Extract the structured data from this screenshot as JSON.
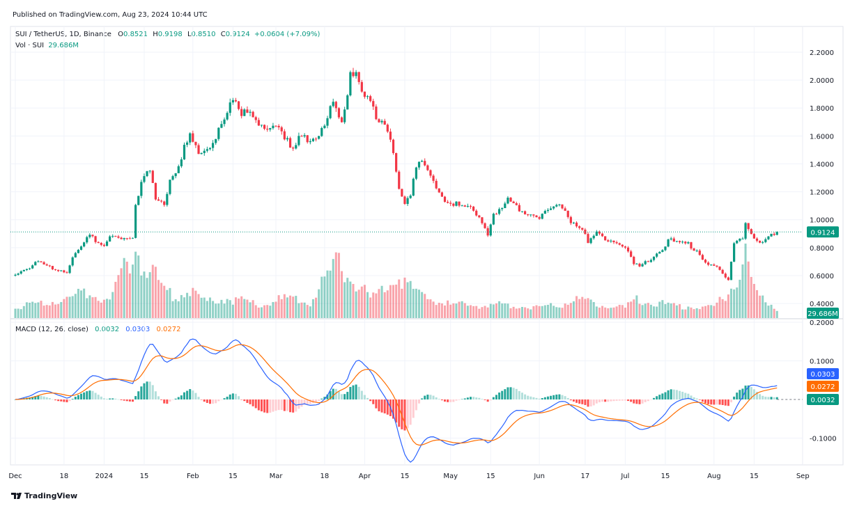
{
  "header": {
    "published": "Published on TradingView.com, Aug 23, 2024 10:44 UTC",
    "symbol": "SUI / TetherUS, 1D, Binance",
    "open_label": "O",
    "open": "0.8521",
    "high_label": "H",
    "high": "0.9198",
    "low_label": "L",
    "low": "0.8510",
    "close_label": "C",
    "close": "0.9124",
    "change": "+0.0604 (+7.09%)",
    "vol_label": "Vol · SUI",
    "vol_value": "29.686M"
  },
  "macd_legend": {
    "label": "MACD (12, 26, close)",
    "hist": "0.0032",
    "macd": "0.0303",
    "signal": "0.0272"
  },
  "branding": {
    "logo_text": "TradingView"
  },
  "colors": {
    "up": "#089981",
    "down": "#f23645",
    "macd": "#2962ff",
    "signal": "#ff6d00",
    "last_price": "#089981"
  },
  "chart_data": {
    "type": "candlestick",
    "price_axis": {
      "ticks": [
        "2.2000",
        "2.0000",
        "1.8000",
        "1.6000",
        "1.4000",
        "1.2000",
        "1.0000",
        "0.8000",
        "0.6000",
        "0.4000"
      ],
      "range": [
        0.2,
        2.4
      ]
    },
    "macd_axis": {
      "ticks": [
        "0.2000",
        "0.1000",
        "-0.1000"
      ]
    },
    "last_price_label": "0.9124",
    "last_volume_label": "29.686M",
    "macd_labels": {
      "macd": "0.0303",
      "signal": "0.0272",
      "hist": "0.0032"
    },
    "time_axis": [
      {
        "label": "Dec",
        "date": "2023-12-01"
      },
      {
        "label": "18",
        "date": "2023-12-18"
      },
      {
        "label": "2024",
        "date": "2024-01-01"
      },
      {
        "label": "15",
        "date": "2024-01-15"
      },
      {
        "label": "Feb",
        "date": "2024-02-01"
      },
      {
        "label": "15",
        "date": "2024-02-15"
      },
      {
        "label": "Mar",
        "date": "2024-03-01"
      },
      {
        "label": "18",
        "date": "2024-03-18"
      },
      {
        "label": "Apr",
        "date": "2024-04-01"
      },
      {
        "label": "15",
        "date": "2024-04-15"
      },
      {
        "label": "May",
        "date": "2024-05-01"
      },
      {
        "label": "15",
        "date": "2024-05-15"
      },
      {
        "label": "Jun",
        "date": "2024-06-01"
      },
      {
        "label": "17",
        "date": "2024-06-17"
      },
      {
        "label": "Jul",
        "date": "2024-07-01"
      },
      {
        "label": "15",
        "date": "2024-07-15"
      },
      {
        "label": "Aug",
        "date": "2024-08-01"
      },
      {
        "label": "15",
        "date": "2024-08-15"
      },
      {
        "label": "Sep",
        "date": "2024-09-01"
      }
    ],
    "close_path": [
      [
        "2023-12-01",
        0.615
      ],
      [
        "2023-12-09",
        0.69
      ],
      [
        "2023-12-13",
        0.66
      ],
      [
        "2023-12-19",
        0.63
      ],
      [
        "2023-12-21",
        0.73
      ],
      [
        "2023-12-27",
        0.88
      ],
      [
        "2024-01-01",
        0.82
      ],
      [
        "2024-01-03",
        0.9
      ],
      [
        "2024-01-07",
        0.85
      ],
      [
        "2024-01-11",
        0.85
      ],
      [
        "2024-01-12",
        1.1
      ],
      [
        "2024-01-14",
        1.29
      ],
      [
        "2024-01-17",
        1.38
      ],
      [
        "2024-01-19",
        1.16
      ],
      [
        "2024-01-22",
        1.08
      ],
      [
        "2024-01-24",
        1.28
      ],
      [
        "2024-01-27",
        1.35
      ],
      [
        "2024-01-29",
        1.55
      ],
      [
        "2024-01-31",
        1.62
      ],
      [
        "2024-02-04",
        1.45
      ],
      [
        "2024-02-08",
        1.52
      ],
      [
        "2024-02-12",
        1.75
      ],
      [
        "2024-02-15",
        1.9
      ],
      [
        "2024-02-17",
        1.8
      ],
      [
        "2024-02-21",
        1.73
      ],
      [
        "2024-02-25",
        1.65
      ],
      [
        "2024-02-27",
        1.68
      ],
      [
        "2024-03-02",
        1.69
      ],
      [
        "2024-03-04",
        1.58
      ],
      [
        "2024-03-07",
        1.48
      ],
      [
        "2024-03-09",
        1.58
      ],
      [
        "2024-03-13",
        1.58
      ],
      [
        "2024-03-15",
        1.61
      ],
      [
        "2024-03-19",
        1.73
      ],
      [
        "2024-03-21",
        1.83
      ],
      [
        "2024-03-24",
        1.68
      ],
      [
        "2024-03-26",
        1.86
      ],
      [
        "2024-03-27",
        2.07
      ],
      [
        "2024-03-29",
        2.07
      ],
      [
        "2024-03-31",
        1.93
      ],
      [
        "2024-04-02",
        1.9
      ],
      [
        "2024-04-05",
        1.7
      ],
      [
        "2024-04-08",
        1.68
      ],
      [
        "2024-04-11",
        1.5
      ],
      [
        "2024-04-13",
        1.23
      ],
      [
        "2024-04-15",
        1.13
      ],
      [
        "2024-04-17",
        1.2
      ],
      [
        "2024-04-19",
        1.37
      ],
      [
        "2024-04-21",
        1.42
      ],
      [
        "2024-04-23",
        1.33
      ],
      [
        "2024-04-27",
        1.2
      ],
      [
        "2024-04-30",
        1.13
      ],
      [
        "2024-05-04",
        1.1
      ],
      [
        "2024-05-08",
        1.07
      ],
      [
        "2024-05-11",
        1.02
      ],
      [
        "2024-05-14",
        0.91
      ],
      [
        "2024-05-16",
        1.05
      ],
      [
        "2024-05-19",
        1.08
      ],
      [
        "2024-05-21",
        1.13
      ],
      [
        "2024-05-25",
        1.08
      ],
      [
        "2024-05-28",
        1.05
      ],
      [
        "2024-06-01",
        1.03
      ],
      [
        "2024-06-05",
        1.08
      ],
      [
        "2024-06-07",
        1.1
      ],
      [
        "2024-06-10",
        1.08
      ],
      [
        "2024-06-12",
        1.0
      ],
      [
        "2024-06-16",
        0.93
      ],
      [
        "2024-06-18",
        0.83
      ],
      [
        "2024-06-21",
        0.9
      ],
      [
        "2024-06-24",
        0.87
      ],
      [
        "2024-06-28",
        0.85
      ],
      [
        "2024-07-01",
        0.8
      ],
      [
        "2024-07-04",
        0.68
      ],
      [
        "2024-07-06",
        0.66
      ],
      [
        "2024-07-10",
        0.73
      ],
      [
        "2024-07-14",
        0.8
      ],
      [
        "2024-07-16",
        0.85
      ],
      [
        "2024-07-20",
        0.83
      ],
      [
        "2024-07-23",
        0.83
      ],
      [
        "2024-07-26",
        0.78
      ],
      [
        "2024-07-29",
        0.7
      ],
      [
        "2024-08-02",
        0.65
      ],
      [
        "2024-08-06",
        0.555
      ],
      [
        "2024-08-08",
        0.85
      ],
      [
        "2024-08-11",
        0.88
      ],
      [
        "2024-08-12",
        1.0
      ],
      [
        "2024-08-15",
        0.85
      ],
      [
        "2024-08-18",
        0.82
      ],
      [
        "2024-08-20",
        0.88
      ],
      [
        "2024-08-23",
        0.9124
      ]
    ],
    "volume_path_millions": [
      [
        "2023-12-01",
        30
      ],
      [
        "2023-12-10",
        45
      ],
      [
        "2023-12-20",
        60
      ],
      [
        "2023-12-27",
        80
      ],
      [
        "2024-01-03",
        50
      ],
      [
        "2024-01-12",
        215
      ],
      [
        "2024-01-15",
        150
      ],
      [
        "2024-01-19",
        120
      ],
      [
        "2024-01-25",
        60
      ],
      [
        "2024-01-31",
        80
      ],
      [
        "2024-02-05",
        50
      ],
      [
        "2024-02-12",
        60
      ],
      [
        "2024-02-15",
        55
      ],
      [
        "2024-02-25",
        40
      ],
      [
        "2024-03-05",
        60
      ],
      [
        "2024-03-13",
        50
      ],
      [
        "2024-03-20",
        140
      ],
      [
        "2024-03-22",
        175
      ],
      [
        "2024-03-27",
        120
      ],
      [
        "2024-04-03",
        60
      ],
      [
        "2024-04-13",
        130
      ],
      [
        "2024-04-20",
        70
      ],
      [
        "2024-05-01",
        40
      ],
      [
        "2024-05-15",
        40
      ],
      [
        "2024-06-01",
        35
      ],
      [
        "2024-06-07",
        40
      ],
      [
        "2024-06-15",
        55
      ],
      [
        "2024-07-01",
        30
      ],
      [
        "2024-07-05",
        60
      ],
      [
        "2024-07-15",
        40
      ],
      [
        "2024-08-01",
        30
      ],
      [
        "2024-08-05",
        70
      ],
      [
        "2024-08-08",
        110
      ],
      [
        "2024-08-12",
        185
      ],
      [
        "2024-08-15",
        80
      ],
      [
        "2024-08-23",
        29.686
      ]
    ]
  }
}
